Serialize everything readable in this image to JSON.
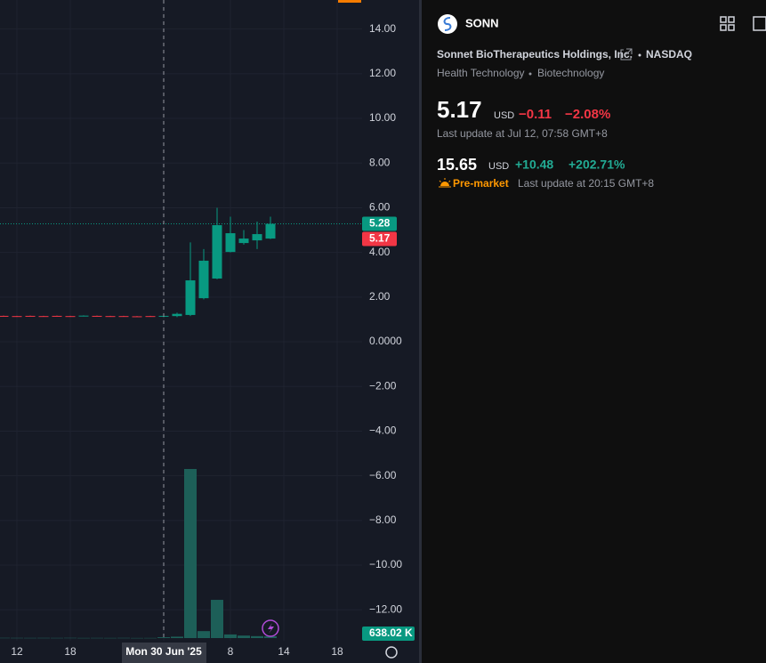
{
  "chart_data": {
    "type": "candlestick",
    "categories": [
      null,
      "12",
      null,
      null,
      null,
      "18",
      null,
      null,
      null,
      null,
      null,
      null,
      "Mon 30 Jun '25",
      null,
      null,
      null,
      null,
      "8",
      null,
      null,
      null,
      "14",
      null,
      null,
      null,
      "18"
    ],
    "open": [
      1.16,
      1.15,
      1.16,
      1.15,
      1.16,
      1.15,
      1.14,
      1.16,
      1.15,
      1.15,
      1.14,
      1.15,
      1.13,
      1.15,
      1.2,
      1.95,
      2.83,
      4.02,
      4.42,
      4.54,
      4.62,
      null,
      null,
      null,
      null,
      null
    ],
    "high": [
      1.17,
      1.16,
      1.17,
      1.16,
      1.17,
      1.16,
      1.18,
      1.17,
      1.16,
      1.16,
      1.15,
      1.16,
      1.2,
      1.3,
      4.45,
      4.15,
      6.0,
      5.6,
      5.0,
      5.38,
      5.6,
      null,
      null,
      null,
      null,
      null
    ],
    "low": [
      1.13,
      1.13,
      1.13,
      1.13,
      1.13,
      1.13,
      1.13,
      1.13,
      1.13,
      1.13,
      1.12,
      1.12,
      1.1,
      1.1,
      1.15,
      1.9,
      2.8,
      4.0,
      4.35,
      4.15,
      4.6,
      null,
      null,
      null,
      null,
      null
    ],
    "close": [
      1.14,
      1.14,
      1.14,
      1.14,
      1.14,
      1.14,
      1.17,
      1.14,
      1.14,
      1.14,
      1.13,
      1.13,
      1.16,
      1.25,
      2.75,
      3.63,
      5.22,
      4.86,
      4.62,
      4.82,
      5.28,
      null,
      null,
      null,
      null,
      null
    ],
    "up_color": "#089981",
    "down_color": "#f23645",
    "volume": {
      "values": [
        90000,
        80000,
        70000,
        80000,
        70000,
        90000,
        60000,
        70000,
        60000,
        80000,
        50000,
        60000,
        300000,
        500000,
        60600000,
        2500000,
        13700000,
        1300000,
        900000,
        700000,
        638020,
        null,
        null,
        null,
        null,
        null
      ],
      "value_labels": [
        null,
        null,
        null,
        null,
        null,
        null,
        null,
        null,
        null,
        null,
        null,
        null,
        null,
        null,
        null,
        null,
        null,
        null,
        null,
        null,
        "638.02 K",
        null,
        null,
        null,
        null,
        null
      ],
      "color": "#1d5f58"
    },
    "ylim": [
      -14.38,
      15.3
    ],
    "yticks": [
      {
        "value": 14,
        "label": "14.00"
      },
      {
        "value": 12,
        "label": "12.00"
      },
      {
        "value": 10,
        "label": "10.00"
      },
      {
        "value": 8,
        "label": "8.00"
      },
      {
        "value": 6,
        "label": "6.00"
      },
      {
        "value": 4,
        "label": "4.00"
      },
      {
        "value": 2,
        "label": "2.00"
      },
      {
        "value": 0,
        "label": "0.0000"
      },
      {
        "value": -2,
        "label": "−2.00"
      },
      {
        "value": -4,
        "label": "−4.00"
      },
      {
        "value": -6,
        "label": "−6.00"
      },
      {
        "value": -8,
        "label": "−8.00"
      },
      {
        "value": -10,
        "label": "−10.00"
      },
      {
        "value": -12,
        "label": "−12.00"
      }
    ],
    "price_lines": [
      {
        "value": 5.28,
        "color": "#089981"
      },
      {
        "value": 5.17,
        "color": "#f23645"
      }
    ],
    "grid": true
  },
  "panel": {
    "symbol": "SONN",
    "company": "Sonnet BioTherapeutics Holdings, Inc.",
    "exchange": "NASDAQ",
    "sector": "Health Technology",
    "industry": "Biotechnology",
    "price": "5.17",
    "currency": "USD",
    "change": "−0.11",
    "change_pct": "−2.08%",
    "last_update": "Last update at Jul 12, 07:58 GMT+8",
    "pre_price": "15.65",
    "pre_currency": "USD",
    "pre_change": "+10.48",
    "pre_change_pct": "+202.71%",
    "pre_label": "Pre-market",
    "pre_update": "Last update at 20:15 GMT+8"
  }
}
